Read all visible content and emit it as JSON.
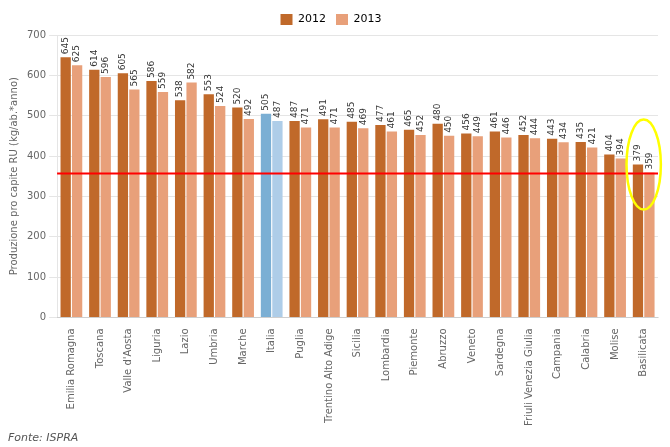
{
  "chart_data": {
    "type": "bar",
    "categories": [
      "Emilia Romagna",
      "Toscana",
      "Valle d'Aosta",
      "Liguria",
      "Lazio",
      "Umbria",
      "Marche",
      "Italia",
      "Puglia",
      "Trentino Alto Adige",
      "Sicilia",
      "Lombardia",
      "Piemonte",
      "Abruzzo",
      "Veneto",
      "Sardegna",
      "Friuli Venezia Giulia",
      "Campania",
      "Calabria",
      "Molise",
      "Basilicata"
    ],
    "series": [
      {
        "name": "2012",
        "color": "#c0692a",
        "colors": [
          "#c0692a",
          "#c0692a",
          "#c0692a",
          "#c0692a",
          "#c0692a",
          "#c0692a",
          "#c0692a",
          "#7bafd4",
          "#c0692a",
          "#c0692a",
          "#c0692a",
          "#c0692a",
          "#c0692a",
          "#c0692a",
          "#c0692a",
          "#c0692a",
          "#c0692a",
          "#c0692a",
          "#c0692a",
          "#c0692a",
          "#c0692a"
        ],
        "values": [
          645,
          614,
          605,
          586,
          538,
          553,
          520,
          505,
          487,
          491,
          485,
          477,
          465,
          480,
          456,
          461,
          452,
          443,
          435,
          404,
          379
        ]
      },
      {
        "name": "2013",
        "color": "#e8a07a",
        "colors": [
          "#e8a07a",
          "#e8a07a",
          "#e8a07a",
          "#e8a07a",
          "#e8a07a",
          "#e8a07a",
          "#e8a07a",
          "#aecde8",
          "#e8a07a",
          "#e8a07a",
          "#e8a07a",
          "#e8a07a",
          "#e8a07a",
          "#e8a07a",
          "#e8a07a",
          "#e8a07a",
          "#e8a07a",
          "#e8a07a",
          "#e8a07a",
          "#e8a07a",
          "#e8a07a"
        ],
        "values": [
          625,
          596,
          565,
          559,
          582,
          524,
          492,
          487,
          471,
          471,
          469,
          461,
          452,
          450,
          449,
          446,
          444,
          434,
          421,
          394,
          359
        ]
      }
    ],
    "y_label": "Produzione pro capite RU (kg/ab.*anno)",
    "ylim": [
      0,
      700
    ],
    "yticks": [
      0,
      100,
      200,
      300,
      400,
      500,
      600,
      700
    ],
    "reference_line": {
      "value": 357,
      "color": "red"
    },
    "highlight": {
      "category": "Basilicata",
      "color": "yellow"
    },
    "source": "Fonte: ISPRA",
    "data_labels": true,
    "grid": true,
    "legend": "top"
  }
}
